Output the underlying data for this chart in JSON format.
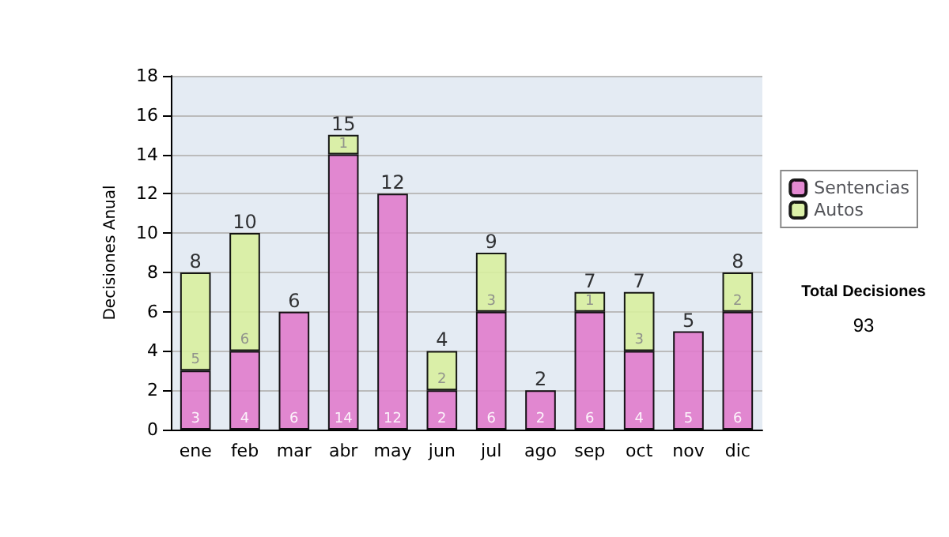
{
  "chart_data": {
    "type": "bar",
    "stacked": true,
    "ylabel": "Decisiones Anual",
    "categories": [
      "ene",
      "feb",
      "mar",
      "abr",
      "may",
      "jun",
      "jul",
      "ago",
      "sep",
      "oct",
      "nov",
      "dic"
    ],
    "series": [
      {
        "name": "Sentencias",
        "color": "#e07ccc",
        "values": [
          3,
          4,
          6,
          14,
          12,
          2,
          6,
          2,
          6,
          4,
          5,
          6
        ]
      },
      {
        "name": "Autos",
        "color": "#d8f0a0",
        "values": [
          5,
          6,
          null,
          1,
          null,
          2,
          3,
          null,
          1,
          3,
          null,
          2
        ]
      }
    ],
    "totals": [
      "8",
      "10",
      "6",
      "15",
      "12",
      "4",
      "9",
      "2",
      "7",
      "7",
      "5",
      "8"
    ],
    "data_labels": true,
    "ylim": [
      0,
      18
    ],
    "yticks": [
      0,
      2,
      4,
      6,
      8,
      10,
      12,
      14,
      16,
      18
    ],
    "grid": "y",
    "legend": "right",
    "annotations": [
      "Total Decisiones",
      "93"
    ]
  }
}
